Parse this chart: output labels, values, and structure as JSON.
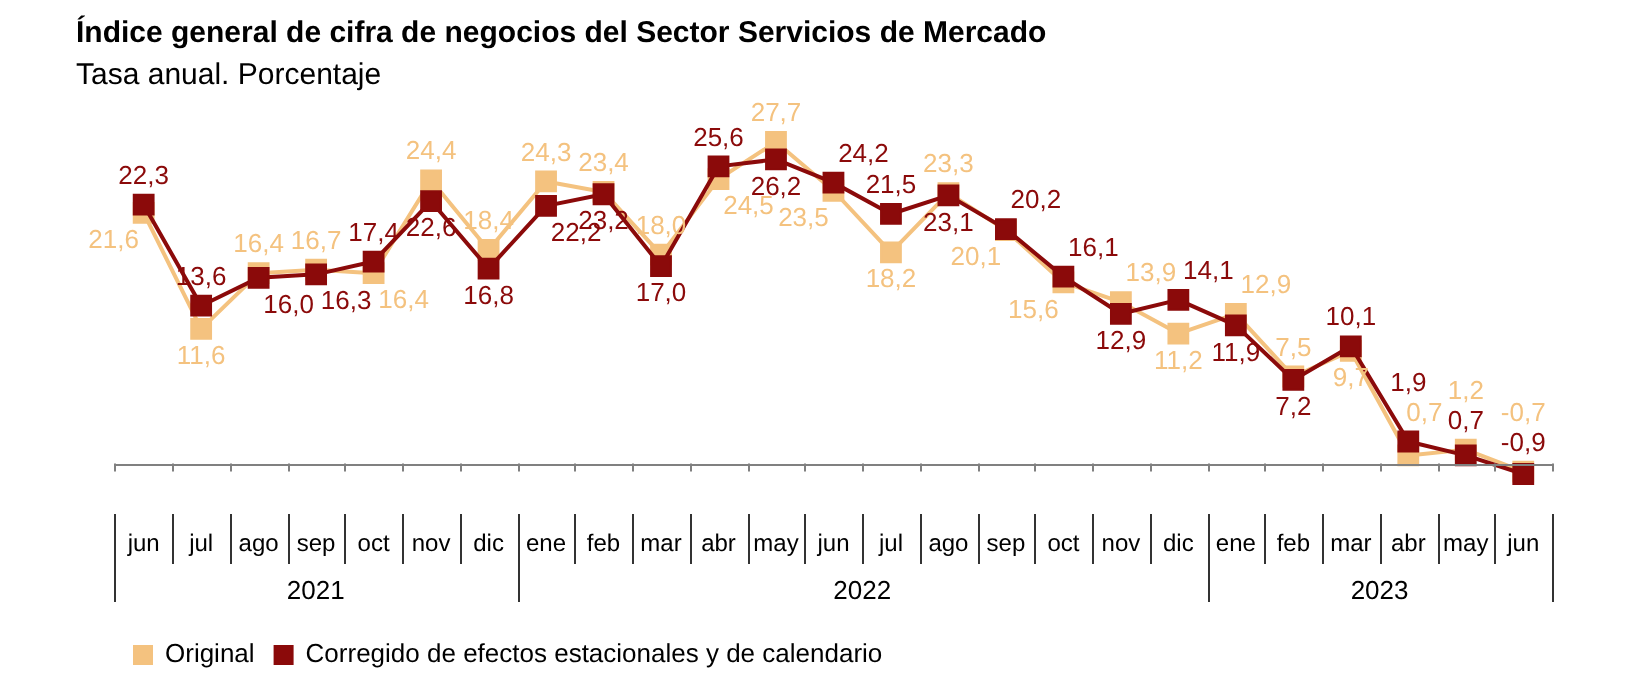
{
  "chart_data": {
    "type": "line",
    "title": "Índice general de cifra de negocios del Sector Servicios de Mercado",
    "subtitle": "Tasa anual. Porcentaje",
    "x": [
      "2021-06",
      "2021-07",
      "2021-08",
      "2021-09",
      "2021-10",
      "2021-11",
      "2021-12",
      "2022-01",
      "2022-02",
      "2022-03",
      "2022-04",
      "2022-05",
      "2022-06",
      "2022-07",
      "2022-08",
      "2022-09",
      "2022-10",
      "2022-11",
      "2022-12",
      "2023-01",
      "2023-02",
      "2023-03",
      "2023-04",
      "2023-05",
      "2023-06"
    ],
    "xticks": [
      {
        "value": "2021-06",
        "label": "jun"
      },
      {
        "value": "2021-07",
        "label": "jul"
      },
      {
        "value": "2021-08",
        "label": "ago"
      },
      {
        "value": "2021-09",
        "label": "sep"
      },
      {
        "value": "2021-10",
        "label": "oct"
      },
      {
        "value": "2021-11",
        "label": "nov"
      },
      {
        "value": "2021-12",
        "label": "dic"
      },
      {
        "value": "2022-01",
        "label": "ene"
      },
      {
        "value": "2022-02",
        "label": "feb"
      },
      {
        "value": "2022-03",
        "label": "mar"
      },
      {
        "value": "2022-04",
        "label": "abr"
      },
      {
        "value": "2022-05",
        "label": "may"
      },
      {
        "value": "2022-06",
        "label": "jun"
      },
      {
        "value": "2022-07",
        "label": "jul"
      },
      {
        "value": "2022-08",
        "label": "ago"
      },
      {
        "value": "2022-09",
        "label": "sep"
      },
      {
        "value": "2022-10",
        "label": "oct"
      },
      {
        "value": "2022-11",
        "label": "nov"
      },
      {
        "value": "2022-12",
        "label": "dic"
      },
      {
        "value": "2023-01",
        "label": "ene"
      },
      {
        "value": "2023-02",
        "label": "feb"
      },
      {
        "value": "2023-03",
        "label": "mar"
      },
      {
        "value": "2023-04",
        "label": "abr"
      },
      {
        "value": "2023-05",
        "label": "may"
      },
      {
        "value": "2023-06",
        "label": "jun"
      }
    ],
    "xlim": [
      "2021-05-16",
      "2023-06-16"
    ],
    "annotations": [
      "2021",
      "2022",
      "2023"
    ],
    "series": [
      {
        "name": "Original",
        "color": "#f4c27f",
        "values": [
          21.6,
          11.6,
          16.4,
          16.7,
          16.4,
          24.4,
          18.4,
          24.3,
          23.4,
          18.0,
          24.5,
          27.7,
          23.5,
          18.2,
          23.3,
          20.1,
          15.6,
          13.9,
          11.2,
          12.9,
          7.5,
          9.7,
          0.7,
          1.2,
          -0.7
        ],
        "value_labels": [
          "21,6",
          "11,6",
          "16,4",
          "16,7",
          "16,4",
          "24,4",
          "18,4",
          "24,3",
          "23,4",
          "18,0",
          "24,5",
          "27,7",
          "23,5",
          "18,2",
          "23,3",
          "20,1",
          "15,6",
          "13,9",
          "11,2",
          "12,9",
          "7,5",
          "9,7",
          "0,7",
          "1,2",
          "-0,7"
        ]
      },
      {
        "name": "Corregido de efectos estacionales y de calendario",
        "color": "#8b0a0a",
        "values": [
          22.3,
          13.6,
          16.0,
          16.3,
          17.4,
          22.6,
          16.8,
          22.2,
          23.2,
          17.0,
          25.6,
          26.2,
          24.2,
          21.5,
          23.1,
          20.2,
          16.1,
          12.9,
          14.1,
          11.9,
          7.2,
          10.1,
          1.9,
          0.7,
          -0.9
        ],
        "value_labels": [
          "22,3",
          "13,6",
          "16,0",
          "16,3",
          "17,4",
          "22,6",
          "16,8",
          "22,2",
          "23,2",
          "17,0",
          "25,6",
          "26,2",
          "24,2",
          "21,5",
          "23,1",
          "20,2",
          "16,1",
          "12,9",
          "14,1",
          "11,9",
          "7,2",
          "10,1",
          "1,9",
          "0,7",
          "-0,9"
        ]
      }
    ],
    "marker": "square",
    "line_style": "solid",
    "legend": "bottom left",
    "tick_labels": "x"
  }
}
